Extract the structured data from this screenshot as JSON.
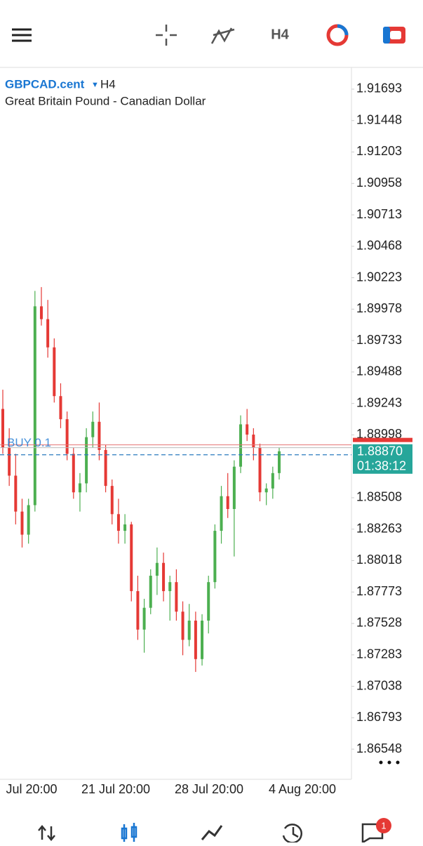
{
  "toolbar": {
    "timeframe": "H4"
  },
  "chart_data": {
    "type": "candlestick",
    "title": "GBPCAD.cent",
    "timeframe": "H4",
    "subtitle": "Great Britain Pound - Canadian Dollar",
    "up_color": "#4caf50",
    "down_color": "#e53935",
    "open": [
      1.892,
      1.889,
      1.8868,
      1.884,
      1.8822,
      1.8845,
      1.9,
      1.899,
      1.8968,
      1.893,
      1.8912,
      1.8885,
      1.8855,
      1.8862,
      1.8898,
      1.891,
      1.8888,
      1.886,
      1.8838,
      1.8825,
      1.883,
      1.8778,
      1.8748,
      1.8765,
      1.879,
      1.88,
      1.8778,
      1.8785,
      1.8762,
      1.874,
      1.8755,
      1.8725,
      1.8755,
      1.8785,
      1.8825,
      1.8852,
      1.8842,
      1.8875,
      1.8908,
      1.89,
      1.889,
      1.8855,
      1.8858,
      1.887
    ],
    "high": [
      1.8935,
      1.8905,
      1.8885,
      1.885,
      1.885,
      1.9012,
      1.9015,
      1.9005,
      1.8975,
      1.894,
      1.8918,
      1.889,
      1.887,
      1.8905,
      1.8918,
      1.8925,
      1.8892,
      1.8865,
      1.885,
      1.8838,
      1.8832,
      1.879,
      1.8772,
      1.8795,
      1.8812,
      1.8808,
      1.879,
      1.8795,
      1.877,
      1.8768,
      1.8762,
      1.876,
      1.879,
      1.883,
      1.886,
      1.887,
      1.888,
      1.8915,
      1.892,
      1.8905,
      1.8893,
      1.8862,
      1.8875,
      1.889
    ],
    "low": [
      1.8885,
      1.886,
      1.883,
      1.8812,
      1.8815,
      1.884,
      1.8985,
      1.896,
      1.8925,
      1.8905,
      1.888,
      1.885,
      1.884,
      1.8855,
      1.889,
      1.888,
      1.8855,
      1.883,
      1.8815,
      1.8815,
      1.877,
      1.874,
      1.873,
      1.876,
      1.8775,
      1.877,
      1.8755,
      1.8755,
      1.8728,
      1.8735,
      1.8715,
      1.872,
      1.8745,
      1.878,
      1.8815,
      1.8835,
      1.8805,
      1.887,
      1.8895,
      1.888,
      1.8848,
      1.8845,
      1.885,
      1.8865
    ],
    "close": [
      1.889,
      1.8868,
      1.884,
      1.8822,
      1.8845,
      1.9,
      1.899,
      1.8968,
      1.893,
      1.8912,
      1.8885,
      1.8855,
      1.8862,
      1.8898,
      1.891,
      1.8888,
      1.886,
      1.8838,
      1.8825,
      1.883,
      1.8778,
      1.8748,
      1.8765,
      1.879,
      1.88,
      1.8778,
      1.8785,
      1.8762,
      1.874,
      1.8755,
      1.8725,
      1.8755,
      1.8785,
      1.8825,
      1.8852,
      1.8842,
      1.8875,
      1.8908,
      1.89,
      1.889,
      1.8855,
      1.8858,
      1.887,
      1.8887
    ],
    "ylim": [
      1.86313,
      1.91857
    ],
    "yticks": [
      1.91693,
      1.91448,
      1.91203,
      1.90958,
      1.90713,
      1.90468,
      1.90223,
      1.89978,
      1.89733,
      1.89488,
      1.89243,
      1.88998,
      1.88508,
      1.88263,
      1.88018,
      1.87773,
      1.87528,
      1.87283,
      1.87038,
      1.86793,
      1.86548
    ],
    "xticks": [
      "Jul 20:00",
      "21 Jul 20:00",
      "28 Jul 20:00",
      "4 Aug 20:00"
    ],
    "order": {
      "label": "BUY 0.1",
      "value": 1.8892
    },
    "current_price": {
      "value": 1.8887,
      "label": "1.88870"
    },
    "timer": "01:38:12"
  },
  "nav": {
    "badge": 1
  }
}
